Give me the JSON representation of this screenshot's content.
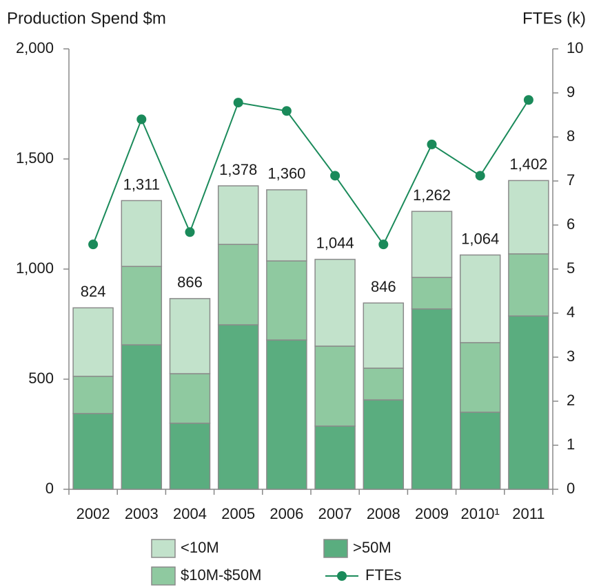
{
  "chart_data": {
    "type": "stacked_bar_line",
    "y_label": "Production Spend $m",
    "y2_label": "FTEs (k)",
    "categories": [
      "2002",
      "2003",
      "2004",
      "2005",
      "2006",
      "2007",
      "2008",
      "2009",
      "2010¹",
      "2011"
    ],
    "series": [
      {
        "name": ">50M",
        "color": "#5aad7f",
        "values": [
          344,
          656,
          300,
          747,
          678,
          287,
          406,
          819,
          350,
          787
        ]
      },
      {
        "name": "$10M-$50M",
        "color": "#8fc9a0",
        "values": [
          169,
          356,
          225,
          365,
          359,
          363,
          144,
          143,
          316,
          282
        ]
      },
      {
        "name": "<10M",
        "color": "#c2e2cb",
        "values": [
          311,
          299,
          341,
          266,
          323,
          394,
          296,
          300,
          398,
          333
        ]
      },
      {
        "name": "FTEs",
        "color": "#1a8a5a",
        "axis": "y2",
        "values": [
          5.56,
          8.4,
          5.84,
          8.78,
          8.59,
          7.12,
          5.56,
          7.83,
          7.12,
          8.84
        ]
      }
    ],
    "totals": [
      824,
      1311,
      866,
      1378,
      1360,
      1044,
      846,
      1262,
      1064,
      1402
    ],
    "total_labels": [
      "824",
      "1,311",
      "866",
      "1,378",
      "1,360",
      "1,044",
      "846",
      "1,262",
      "1,064",
      "1,402"
    ],
    "ylim": [
      0,
      2000
    ],
    "yticks": [
      0,
      500,
      {
        "value": 1000,
        "label": "1,000"
      },
      {
        "value": 1500,
        "label": "1,500"
      },
      {
        "value": 2000,
        "label": "2,000"
      }
    ],
    "y2lim": [
      0,
      10
    ],
    "y2ticks": [
      0,
      1,
      2,
      3,
      4,
      5,
      6,
      7,
      8,
      9,
      10
    ]
  }
}
